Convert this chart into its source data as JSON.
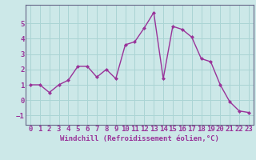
{
  "x": [
    0,
    1,
    2,
    3,
    4,
    5,
    6,
    7,
    8,
    9,
    10,
    11,
    12,
    13,
    14,
    15,
    16,
    17,
    18,
    19,
    20,
    21,
    22,
    23
  ],
  "y": [
    1.0,
    1.0,
    0.5,
    1.0,
    1.3,
    2.2,
    2.2,
    1.5,
    2.0,
    1.4,
    3.6,
    3.8,
    4.7,
    5.7,
    1.4,
    4.8,
    4.6,
    4.1,
    2.7,
    2.5,
    1.0,
    -0.1,
    -0.7,
    -0.8
  ],
  "line_color": "#993399",
  "marker": "D",
  "marker_size": 2.0,
  "line_width": 1.0,
  "background_color": "#cce8e8",
  "grid_color": "#aad4d4",
  "xlabel": "Windchill (Refroidissement éolien,°C)",
  "xlabel_fontsize": 6.5,
  "tick_fontsize": 6.5,
  "ylim": [
    -1.6,
    6.2
  ],
  "xlim": [
    -0.5,
    23.5
  ],
  "yticks": [
    -1,
    0,
    1,
    2,
    3,
    4,
    5
  ],
  "xticks": [
    0,
    1,
    2,
    3,
    4,
    5,
    6,
    7,
    8,
    9,
    10,
    11,
    12,
    13,
    14,
    15,
    16,
    17,
    18,
    19,
    20,
    21,
    22,
    23
  ],
  "spine_color": "#666688"
}
